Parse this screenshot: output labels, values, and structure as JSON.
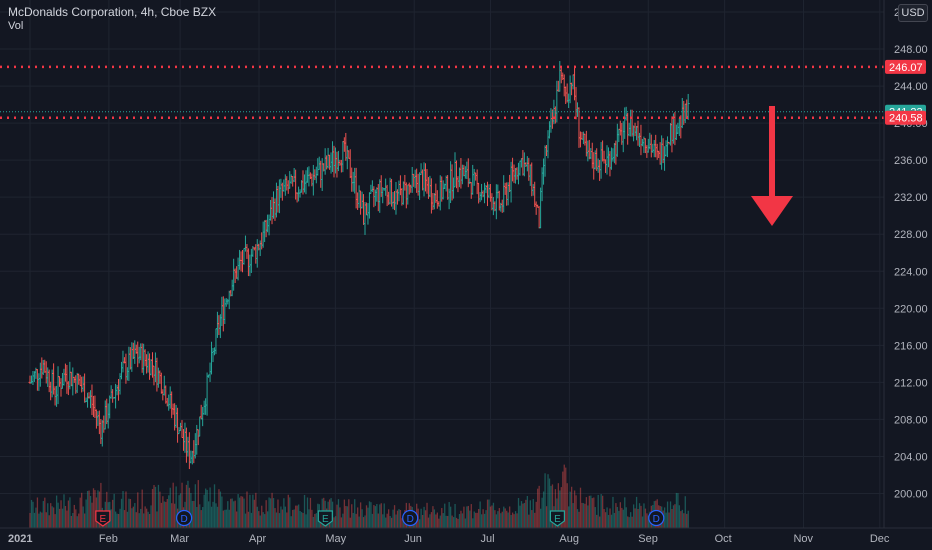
{
  "header": {
    "title": "McDonalds Corporation, 4h, Cboe BZX",
    "sub": "Vol",
    "currency": "USD"
  },
  "colors": {
    "bg": "#131722",
    "grid": "#1f2430",
    "up": "#26a69a",
    "down": "#ef5350",
    "text": "#b2b5be",
    "level": "#f23645"
  },
  "price_axis": {
    "ticks": [
      252,
      248,
      244,
      240,
      236,
      232,
      228,
      224,
      220,
      216,
      212,
      208,
      204,
      200
    ]
  },
  "time_axis": {
    "labels": [
      "2021",
      "Feb",
      "Mar",
      "Apr",
      "May",
      "Jun",
      "Jul",
      "Aug",
      "Sep",
      "Oct",
      "Nov",
      "Dec"
    ]
  },
  "price_labels": [
    {
      "value": 246.07,
      "label": "246.07",
      "kind": "level"
    },
    {
      "value": 241.23,
      "label": "241.23",
      "kind": "last"
    },
    {
      "value": 240.58,
      "label": "240.58",
      "kind": "level"
    }
  ],
  "event_markers": [
    {
      "letter": "E",
      "month": "Feb",
      "kind": "earnings-past"
    },
    {
      "letter": "D",
      "month": "Mar",
      "kind": "dividend"
    },
    {
      "letter": "E",
      "month": "May",
      "kind": "earnings"
    },
    {
      "letter": "D",
      "month": "Jun",
      "kind": "dividend"
    },
    {
      "letter": "E",
      "month": "Aug",
      "kind": "earnings"
    },
    {
      "letter": "D",
      "month": "Sep",
      "kind": "dividend"
    }
  ],
  "annotation": {
    "type": "arrow-down"
  },
  "chart_data": {
    "type": "ohlc-bar",
    "title": "McDonalds Corporation, 4h, Cboe BZX",
    "ylim": [
      196,
      253
    ],
    "x_range": [
      "2021-01-01",
      "2021-12-05"
    ],
    "horizontal_levels": [
      246.07,
      240.58
    ],
    "last_price": 241.23,
    "volume_label": "Vol",
    "price_path": [
      [
        "2021-01-01",
        212
      ],
      [
        "2021-01-06",
        214
      ],
      [
        "2021-01-11",
        211
      ],
      [
        "2021-01-15",
        213
      ],
      [
        "2021-01-20",
        212
      ],
      [
        "2021-01-25",
        210
      ],
      [
        "2021-01-29",
        207
      ],
      [
        "2021-02-02",
        210
      ],
      [
        "2021-02-06",
        213
      ],
      [
        "2021-02-12",
        215
      ],
      [
        "2021-02-18",
        214
      ],
      [
        "2021-02-22",
        212
      ],
      [
        "2021-02-26",
        209
      ],
      [
        "2021-03-02",
        206
      ],
      [
        "2021-03-05",
        204
      ],
      [
        "2021-03-08",
        207
      ],
      [
        "2021-03-12",
        212
      ],
      [
        "2021-03-16",
        218
      ],
      [
        "2021-03-20",
        222
      ],
      [
        "2021-03-25",
        225
      ],
      [
        "2021-03-30",
        226
      ],
      [
        "2021-04-03",
        228
      ],
      [
        "2021-04-08",
        232
      ],
      [
        "2021-04-12",
        233
      ],
      [
        "2021-04-16",
        233
      ],
      [
        "2021-04-21",
        234
      ],
      [
        "2021-04-26",
        235
      ],
      [
        "2021-04-30",
        236
      ],
      [
        "2021-05-04",
        237
      ],
      [
        "2021-05-08",
        234
      ],
      [
        "2021-05-12",
        230
      ],
      [
        "2021-05-16",
        232
      ],
      [
        "2021-05-20",
        233
      ],
      [
        "2021-05-25",
        232
      ],
      [
        "2021-05-30",
        233
      ],
      [
        "2021-06-04",
        234
      ],
      [
        "2021-06-09",
        232
      ],
      [
        "2021-06-14",
        233
      ],
      [
        "2021-06-18",
        235
      ],
      [
        "2021-06-22",
        234
      ],
      [
        "2021-06-26",
        233
      ],
      [
        "2021-07-01",
        232
      ],
      [
        "2021-07-05",
        231
      ],
      [
        "2021-07-09",
        234
      ],
      [
        "2021-07-13",
        236
      ],
      [
        "2021-07-17",
        234
      ],
      [
        "2021-07-20",
        229
      ],
      [
        "2021-07-22",
        236
      ],
      [
        "2021-07-26",
        241
      ],
      [
        "2021-07-28",
        245
      ],
      [
        "2021-07-31",
        243
      ],
      [
        "2021-08-02",
        245
      ],
      [
        "2021-08-05",
        239
      ],
      [
        "2021-08-08",
        236
      ],
      [
        "2021-08-12",
        236
      ],
      [
        "2021-08-16",
        236
      ],
      [
        "2021-08-20",
        238
      ],
      [
        "2021-08-24",
        240
      ],
      [
        "2021-08-28",
        239
      ],
      [
        "2021-09-01",
        238
      ],
      [
        "2021-09-05",
        236
      ],
      [
        "2021-09-09",
        239
      ],
      [
        "2021-09-13",
        240
      ],
      [
        "2021-09-17",
        241.23
      ]
    ],
    "volume_path": [
      [
        "2021-01-01",
        0.3
      ],
      [
        "2021-01-20",
        0.35
      ],
      [
        "2021-01-29",
        0.45
      ],
      [
        "2021-02-10",
        0.35
      ],
      [
        "2021-03-05",
        0.55
      ],
      [
        "2021-03-20",
        0.4
      ],
      [
        "2021-04-08",
        0.35
      ],
      [
        "2021-05-04",
        0.3
      ],
      [
        "2021-06-04",
        0.25
      ],
      [
        "2021-07-13",
        0.3
      ],
      [
        "2021-07-28",
        0.7
      ],
      [
        "2021-08-08",
        0.35
      ],
      [
        "2021-09-01",
        0.3
      ],
      [
        "2021-09-17",
        0.4
      ]
    ]
  }
}
